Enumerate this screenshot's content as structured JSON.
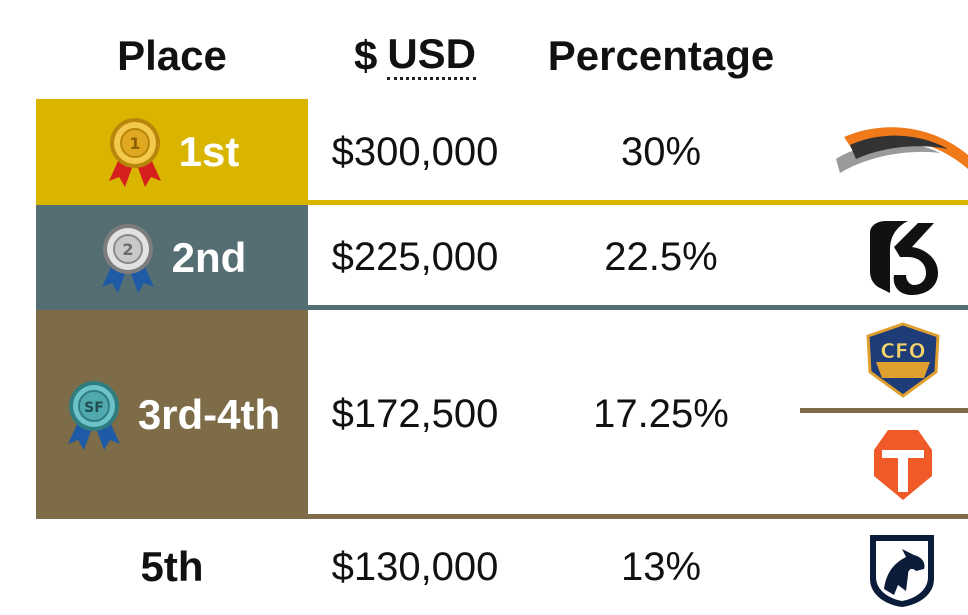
{
  "headers": {
    "place": "Place",
    "currency_symbol": "$",
    "currency_code": "USD",
    "percentage": "Percentage"
  },
  "rows": [
    {
      "place": "1st",
      "amount": "$300,000",
      "percentage": "30%",
      "medal": "gold-medal-icon",
      "team_logos": [
        "team-logo-swoosh-icon"
      ],
      "color": "#d9b500"
    },
    {
      "place": "2nd",
      "amount": "$225,000",
      "percentage": "22.5%",
      "medal": "silver-medal-icon",
      "team_logos": [
        "team-logo-karmine-icon"
      ],
      "color": "#546e74"
    },
    {
      "place": "3rd-4th",
      "amount": "$172,500",
      "percentage": "17.25%",
      "medal": "sf-medal-icon",
      "medal_text": "SF",
      "team_logos": [
        "team-logo-cfo-icon",
        "team-logo-t-shield-icon"
      ],
      "color": "#7d6c47"
    },
    {
      "place": "5th",
      "amount": "$130,000",
      "percentage": "13%",
      "medal": "",
      "team_logos": [
        "team-logo-liquid-icon"
      ],
      "color": "#ffffff"
    }
  ]
}
